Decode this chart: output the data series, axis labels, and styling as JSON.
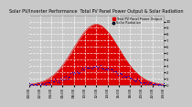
{
  "title": "Solar PV/Inverter Performance  Total PV Panel Power Output & Solar Radiation",
  "bg_color": "#c8c8c8",
  "plot_bg_color": "#c8c8c8",
  "red_color": "#dd0000",
  "blue_color": "#0000cc",
  "grid_color": "#ffffff",
  "n_points": 120,
  "mu": 60,
  "sigma_power": 20,
  "sigma_rad": 21,
  "peak_power": 1.0,
  "peak_radiation": 0.3,
  "rad_noise": 0.018,
  "ylim_max": 1.15,
  "legend_red": "Total PV Panel Power Output",
  "legend_blue": "Solar Radiation",
  "x_labels": [
    "00:00",
    "02:00",
    "04:00",
    "06:00",
    "08:00",
    "10:00",
    "12:00",
    "14:00",
    "16:00",
    "18:00",
    "20:00",
    "22:00",
    "24:00"
  ],
  "y_labels": [
    "0",
    "1",
    "2",
    "3",
    "4",
    "5",
    "6",
    "7",
    "8",
    "9",
    "10"
  ],
  "title_fontsize": 3.5,
  "tick_fontsize": 2.8,
  "legend_fontsize": 2.5
}
